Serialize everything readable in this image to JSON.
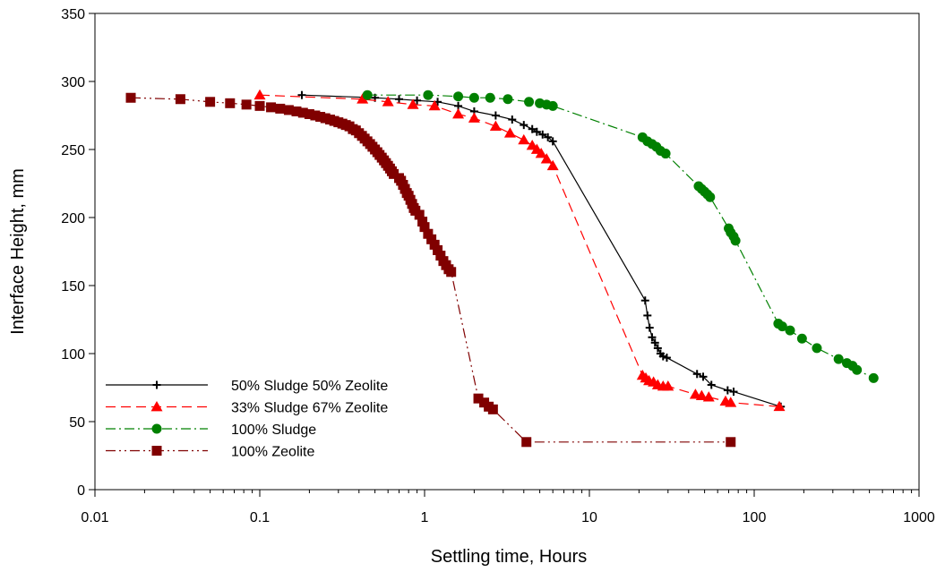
{
  "chart_data": {
    "type": "line",
    "title": "",
    "xlabel": "Settling time, Hours",
    "ylabel": "Interface Height, mm",
    "xscale": "log",
    "xlim": [
      0.01,
      1000
    ],
    "ylim": [
      0,
      350
    ],
    "xticks": [
      "0.01",
      "0.1",
      "1",
      "10",
      "100",
      "1000"
    ],
    "yticks": [
      "0",
      "50",
      "100",
      "150",
      "200",
      "250",
      "300",
      "350"
    ],
    "grid": false,
    "legend_position": "bottom-left",
    "series": [
      {
        "name": "50% Sludge 50% Zeolite",
        "color": "#000000",
        "marker": "plus",
        "dash": "solid",
        "x": [
          0.18,
          0.5,
          0.7,
          0.9,
          1.2,
          1.6,
          2.0,
          2.7,
          3.4,
          4.0,
          4.5,
          4.8,
          5.2,
          5.6,
          6.0,
          21.8,
          22.5,
          23.2,
          24.0,
          25.0,
          26.0,
          27.0,
          28.0,
          29.5,
          45.0,
          49.0,
          55.0,
          69.0,
          75.0,
          145.0
        ],
        "y": [
          290,
          288,
          287,
          286,
          285,
          282,
          278,
          275,
          272,
          268,
          265,
          263,
          261,
          259,
          256,
          139,
          128,
          119,
          112,
          108,
          104,
          100,
          98,
          97,
          85,
          83,
          77,
          73,
          72,
          61
        ]
      },
      {
        "name": "33% Sludge 67% Zeolite",
        "color": "#ff0000",
        "marker": "triangle",
        "dash": "dashed",
        "x": [
          0.1,
          0.42,
          0.6,
          0.85,
          1.15,
          1.6,
          2.0,
          2.7,
          3.3,
          4.0,
          4.5,
          4.8,
          5.1,
          5.5,
          6.0,
          21.0,
          22.0,
          23.0,
          24.5,
          26.0,
          28.0,
          30.0,
          44.0,
          48.0,
          53.0,
          67.0,
          72.0,
          142.0
        ],
        "y": [
          290,
          287,
          285,
          283,
          282,
          276,
          273,
          267,
          262,
          257,
          253,
          250,
          247,
          243,
          238,
          84,
          82,
          80,
          79,
          77,
          76,
          76,
          70,
          69,
          68,
          65,
          64,
          61
        ]
      },
      {
        "name": "100% Sludge",
        "color": "#008000",
        "marker": "circle",
        "dash": "dashdot",
        "x": [
          0.45,
          1.05,
          1.6,
          2.0,
          2.5,
          3.2,
          4.3,
          5.0,
          5.5,
          6.0,
          21.0,
          22.5,
          24.0,
          25.5,
          27.0,
          29.0,
          46.0,
          48.0,
          50.0,
          52.0,
          54.0,
          70.0,
          72.0,
          75.0,
          77.0,
          140.0,
          148.0,
          165.0,
          195.0,
          240.0,
          325.0,
          365.0,
          395.0,
          420.0,
          530.0
        ],
        "y": [
          290,
          290,
          289,
          288,
          288,
          287,
          285,
          284,
          283,
          282,
          259,
          256,
          254,
          252,
          249,
          247,
          223,
          221,
          219,
          217,
          215,
          192,
          189,
          186,
          183,
          122,
          120,
          117,
          111,
          104,
          96,
          93,
          91,
          88,
          82
        ]
      },
      {
        "name": "100% Zeolite",
        "color": "#800000",
        "marker": "square",
        "dash": "dashdotdot",
        "x": [
          0.0165,
          0.033,
          0.05,
          0.066,
          0.083,
          0.1,
          0.117,
          0.133,
          0.15,
          0.167,
          0.183,
          0.2,
          0.217,
          0.233,
          0.25,
          0.267,
          0.283,
          0.3,
          0.317,
          0.333,
          0.35,
          0.367,
          0.383,
          0.4,
          0.417,
          0.433,
          0.45,
          0.467,
          0.483,
          0.5,
          0.517,
          0.533,
          0.55,
          0.567,
          0.583,
          0.6,
          0.617,
          0.633,
          0.65,
          0.7,
          0.72,
          0.74,
          0.76,
          0.78,
          0.8,
          0.82,
          0.84,
          0.86,
          0.88,
          0.93,
          0.97,
          1.0,
          1.05,
          1.1,
          1.15,
          1.2,
          1.25,
          1.3,
          1.35,
          1.4,
          1.45,
          2.12,
          2.3,
          2.45,
          2.6,
          4.15,
          72.0
        ],
        "y": [
          288,
          287,
          285,
          284,
          283,
          282,
          281,
          280,
          279,
          278,
          277,
          276,
          275,
          274,
          273,
          272,
          271,
          270,
          269,
          268,
          267,
          265,
          264,
          262,
          260,
          258,
          256,
          254,
          252,
          250,
          248,
          246,
          244,
          242,
          240,
          238,
          236,
          234,
          232,
          229,
          227,
          224,
          221,
          218,
          216,
          213,
          210,
          207,
          205,
          202,
          197,
          193,
          188,
          184,
          180,
          176,
          172,
          168,
          165,
          162,
          160,
          67,
          64,
          61,
          59,
          35,
          35
        ]
      }
    ]
  }
}
